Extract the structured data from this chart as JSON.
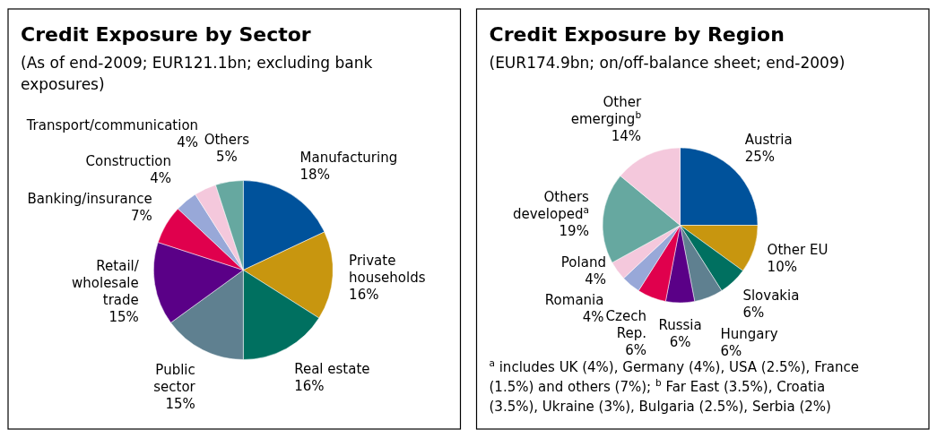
{
  "chart_data": [
    {
      "type": "pie",
      "title": "Credit Exposure by Sector",
      "subtitle": "(As of end-2009; EUR121.1bn; excluding bank exposures)",
      "categories": [
        "Manufacturing",
        "Private households",
        "Real estate",
        "Public sector",
        "Retail/ wholesale trade",
        "Banking/insurance",
        "Construction",
        "Transport/communication",
        "Others"
      ],
      "values": [
        18,
        16,
        16,
        15,
        15,
        7,
        4,
        4,
        5
      ],
      "colors": [
        "#00529b",
        "#c8960f",
        "#007060",
        "#5f8090",
        "#5a0087",
        "#e0004d",
        "#98a8d8",
        "#f4c8dc",
        "#66a8a0"
      ],
      "value_labels": [
        "18%",
        "16%",
        "16%",
        "15%",
        "15%",
        "7%",
        "4%",
        "4%",
        "5%"
      ]
    },
    {
      "type": "pie",
      "title": "Credit Exposure by Region",
      "subtitle": "(EUR174.9bn; on/off-balance sheet; end-2009)",
      "categories": [
        "Austria",
        "Other EU",
        "Slovakia",
        "Hungary",
        "Russia",
        "Czech Rep.",
        "Romania",
        "Poland",
        "Others developed$^{a}$",
        "Other emerging$^{b}$"
      ],
      "values": [
        25,
        10,
        6,
        6,
        6,
        6,
        4,
        4,
        19,
        14
      ],
      "colors": [
        "#00529b",
        "#c8960f",
        "#007060",
        "#5f8090",
        "#5a0087",
        "#e0004d",
        "#98a8d8",
        "#f4c8dc",
        "#66a8a0",
        "#f4c8dc"
      ],
      "value_labels": [
        "25%",
        "10%",
        "6%",
        "6%",
        "6%",
        "6%",
        "4%",
        "4%",
        "19%",
        "14%"
      ],
      "annotations": [
        "$^{a}$ includes UK (4%), Germany (4%), USA (2.5%), France (1.5%) and others (7%); $^{b}$ Far East (3.5%), Croatia (3.5%), Ukraine (3%), Bulgaria (2.5%), Serbia (2%)"
      ]
    }
  ]
}
